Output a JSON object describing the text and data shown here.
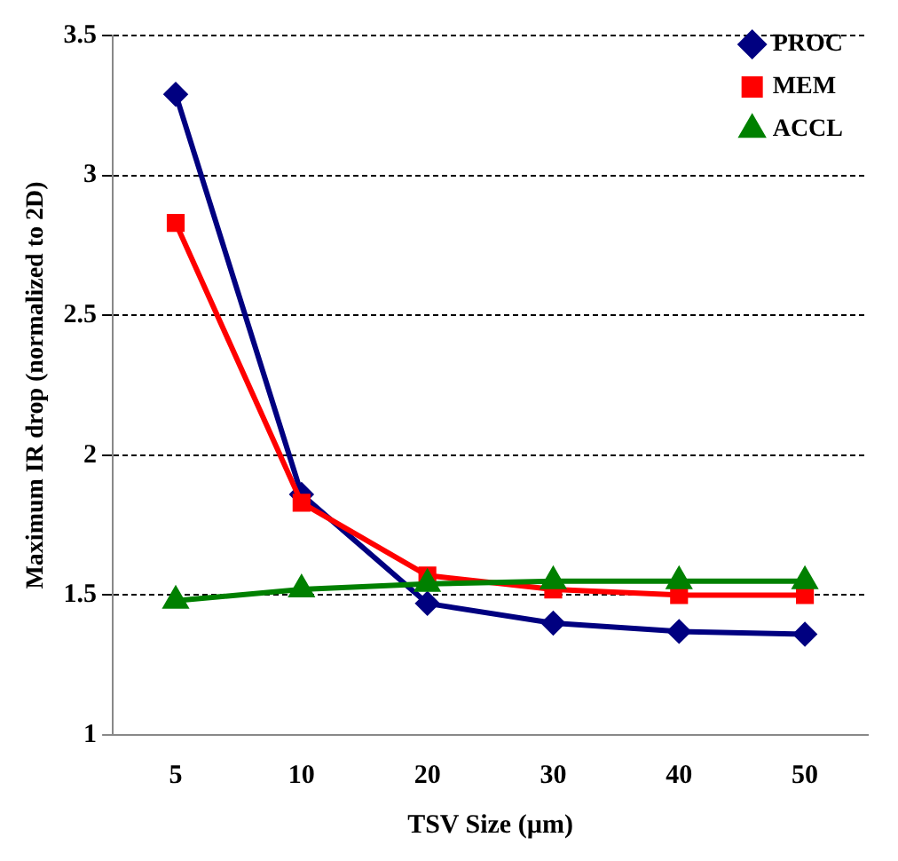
{
  "chart_data": {
    "type": "line",
    "xlabel": "TSV Size (µm)",
    "ylabel": "Maximum IR drop (normalized to 2D)",
    "categories": [
      "5",
      "10",
      "20",
      "30",
      "40",
      "50"
    ],
    "series": [
      {
        "name": "PROC",
        "color": "#000080",
        "marker": "diamond",
        "values": [
          3.29,
          1.86,
          1.47,
          1.4,
          1.37,
          1.36
        ]
      },
      {
        "name": "MEM",
        "color": "#ff0000",
        "marker": "square",
        "values": [
          2.83,
          1.83,
          1.57,
          1.52,
          1.5,
          1.5
        ]
      },
      {
        "name": "ACCL",
        "color": "#008000",
        "marker": "triangle",
        "values": [
          1.48,
          1.52,
          1.54,
          1.55,
          1.55,
          1.55
        ]
      }
    ],
    "ylim": [
      1,
      3.5
    ],
    "yticks": [
      1,
      1.5,
      2,
      2.5,
      3,
      3.5
    ],
    "grid": "y",
    "legend": "top right"
  }
}
